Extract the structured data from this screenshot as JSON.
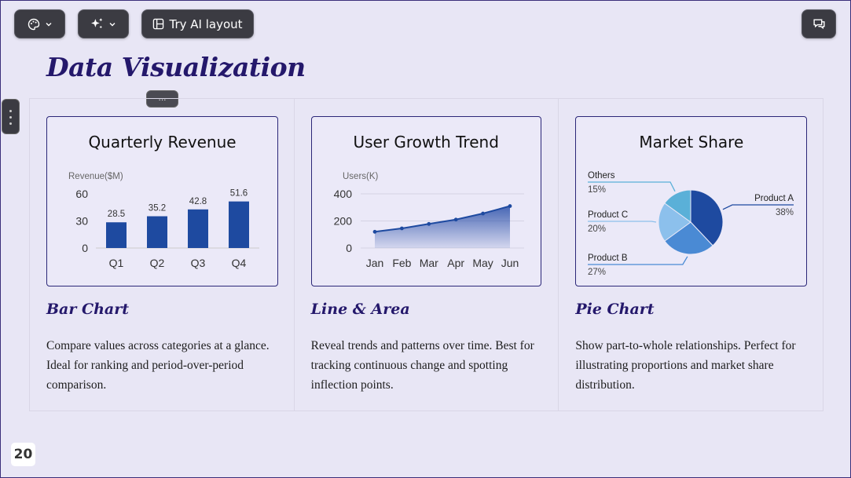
{
  "toolbar": {
    "theme_button": {
      "icon": "palette-icon",
      "caret": "chevron-down-icon"
    },
    "ai_button": {
      "icon": "sparkle-icon",
      "caret": "chevron-down-icon"
    },
    "ai_layout_label": "Try AI layout",
    "comments_icon": "comments-icon"
  },
  "slide": {
    "title": "Data Visualization",
    "drag_handle": "...",
    "page_number": "20"
  },
  "columns": [
    {
      "kind": "Bar Chart",
      "description": "Compare values across categories at a glance. Ideal for ranking and period-over-period comparison."
    },
    {
      "kind": "Line & Area",
      "description": "Reveal trends and patterns over time. Best for tracking continuous change and spotting inflection points."
    },
    {
      "kind": "Pie Chart",
      "description": "Show part-to-whole relationships. Perfect for illustrating proportions and market share distribution."
    }
  ],
  "colors": {
    "title": "#24186b",
    "bar": "#1e4aa0",
    "line": "#1e4aa0",
    "pie": [
      "#1e4aa0",
      "#4a8ad4",
      "#8cc0ec",
      "#5ab0d8"
    ]
  },
  "chart_data": [
    {
      "type": "bar",
      "title": "Quarterly Revenue",
      "ylabel": "Revenue($M)",
      "categories": [
        "Q1",
        "Q2",
        "Q3",
        "Q4"
      ],
      "values": [
        28.5,
        35.2,
        42.8,
        51.6
      ],
      "yticks": [
        "0",
        "30",
        "60"
      ],
      "ylim": [
        0,
        60
      ],
      "grid": false
    },
    {
      "type": "area",
      "title": "User Growth Trend",
      "ylabel": "Users(K)",
      "categories": [
        "Jan",
        "Feb",
        "Mar",
        "Apr",
        "May",
        "Jun"
      ],
      "values": [
        120,
        145,
        178,
        210,
        255,
        310
      ],
      "yticks": [
        "0",
        "200",
        "400"
      ],
      "ylim": [
        0,
        400
      ],
      "grid": true
    },
    {
      "type": "pie",
      "title": "Market Share",
      "slices": [
        {
          "label": "Product A",
          "pct": "38%",
          "value": 38
        },
        {
          "label": "Product B",
          "pct": "27%",
          "value": 27
        },
        {
          "label": "Product C",
          "pct": "20%",
          "value": 20
        },
        {
          "label": "Others",
          "pct": "15%",
          "value": 15
        }
      ]
    }
  ]
}
